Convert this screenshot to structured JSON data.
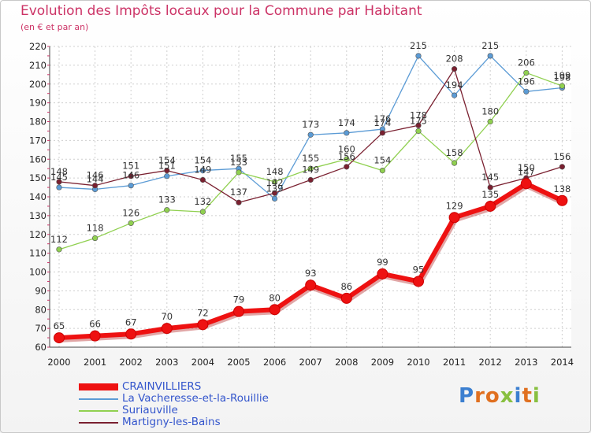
{
  "header": {
    "title": "Evolution des Impôts locaux pour la Commune par Habitant",
    "subtitle": "(en € et par an)"
  },
  "logo": {
    "text": "Proxiti",
    "colors": [
      "#3b7fd0",
      "#e07020",
      "#88c040"
    ]
  },
  "chart_data": {
    "type": "line",
    "title": "Evolution des Impôts locaux pour la Commune par Habitant",
    "subtitle": "(en € et par an)",
    "xlabel": "",
    "ylabel": "",
    "ylim": [
      60,
      220
    ],
    "yticks": [
      60,
      70,
      80,
      90,
      100,
      110,
      120,
      130,
      140,
      150,
      160,
      170,
      180,
      190,
      200,
      210,
      220
    ],
    "grid": true,
    "legend_position": "bottom-left",
    "categories": [
      "2000",
      "2001",
      "2002",
      "2003",
      "2004",
      "2005",
      "2006",
      "2007",
      "2008",
      "2009",
      "2010",
      "2011",
      "2012",
      "2013",
      "2014"
    ],
    "series": [
      {
        "name": "La Vacheresse-et-la-Rouillie",
        "color": "#5b9bd5",
        "values": [
          145,
          144,
          146,
          151,
          154,
          155,
          139,
          173,
          174,
          176,
          215,
          194,
          215,
          196,
          198
        ],
        "labels": [
          "145",
          "144",
          "146",
          "151",
          "154",
          "155",
          "139",
          "173",
          "174",
          "176",
          "215",
          "194",
          "215",
          "196",
          "198"
        ]
      },
      {
        "name": "Suriauville",
        "color": "#90d050",
        "values": [
          112,
          118,
          126,
          133,
          132,
          153,
          148,
          155,
          160,
          154,
          175,
          158,
          180,
          206,
          199
        ],
        "labels": [
          "112",
          "118",
          "126",
          "133",
          "132",
          "153",
          "148",
          "155",
          "160",
          "154",
          "175",
          "158",
          "180",
          "206",
          "199"
        ]
      },
      {
        "name": "Martigny-les-Bains",
        "color": "#7a2030",
        "values": [
          148,
          146,
          151,
          154,
          149,
          137,
          142,
          149,
          156,
          174,
          178,
          208,
          145,
          150,
          156
        ],
        "labels": [
          "148",
          "146",
          "151",
          "154",
          "149",
          "137",
          "142",
          "149",
          "156",
          "174",
          "178",
          "208",
          "145",
          "150",
          "156"
        ]
      },
      {
        "name": "CRAINVILLIERS",
        "color": "#ee1111",
        "values": [
          65,
          66,
          67,
          70,
          72,
          79,
          80,
          93,
          86,
          99,
          95,
          129,
          135,
          147,
          138
        ],
        "labels": [
          "65",
          "66",
          "67",
          "70",
          "72",
          "79",
          "80",
          "93",
          "86",
          "99",
          "95",
          "129",
          "135",
          "147",
          "138"
        ]
      }
    ]
  },
  "legend": {
    "items": [
      {
        "label": "CRAINVILLIERS",
        "color": "#ee1111",
        "thick": true
      },
      {
        "label": "La Vacheresse-et-la-Rouillie",
        "color": "#5b9bd5",
        "thick": false
      },
      {
        "label": "Suriauville",
        "color": "#90d050",
        "thick": false
      },
      {
        "label": "Martigny-les-Bains",
        "color": "#7a2030",
        "thick": false
      }
    ]
  }
}
